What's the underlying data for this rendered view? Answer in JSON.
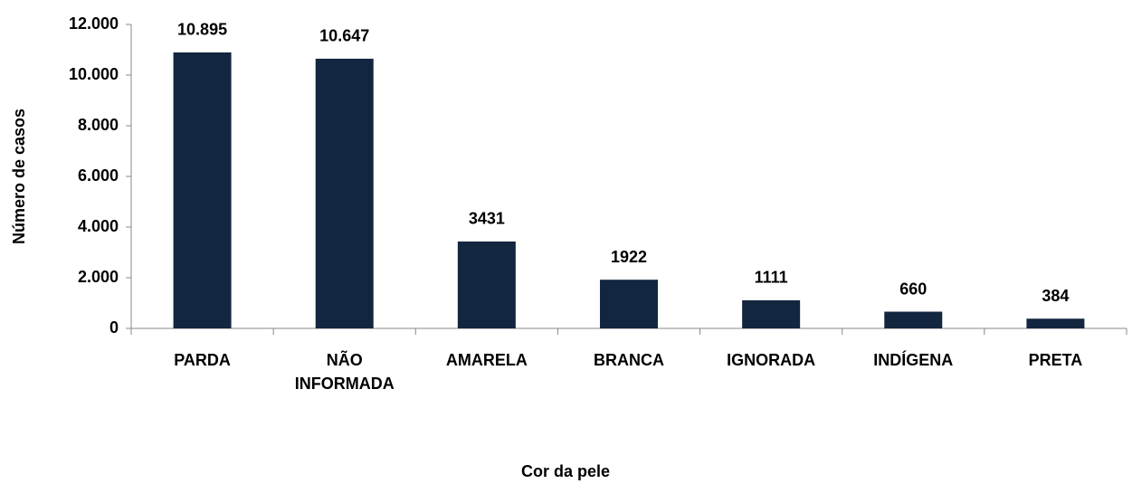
{
  "chart_data": {
    "type": "bar",
    "x_label": "Cor da pele",
    "y_label": "Número de casos",
    "categories": [
      "PARDA",
      "NÃO INFORMADA",
      "AMARELA",
      "BRANCA",
      "IGNORADA",
      "INDÍGENA",
      "PRETA"
    ],
    "values": [
      10895,
      10647,
      3431,
      1922,
      1111,
      660,
      384
    ],
    "value_labels": [
      "10.895",
      "10.647",
      "3431",
      "1922",
      "1111",
      "660",
      "384"
    ],
    "color": "#13263f",
    "ylim": [
      0,
      12000
    ],
    "yticks": [
      0,
      {
        "value": 2000,
        "label": "2.000"
      },
      {
        "value": 4000,
        "label": "4.000"
      },
      {
        "value": 6000,
        "label": "6.000"
      },
      {
        "value": 8000,
        "label": "8.000"
      },
      {
        "value": 10000,
        "label": "10.000"
      },
      {
        "value": 12000,
        "label": "12.000"
      }
    ],
    "grid": false
  }
}
